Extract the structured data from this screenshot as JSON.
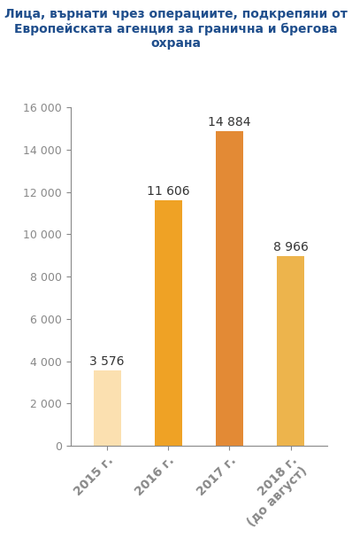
{
  "chart_data": {
    "type": "bar",
    "title": "Лица, върнати чрез операциите, подкрепяни от Европейската агенция за гранична и брегова охрана",
    "categories": [
      "2015 г.",
      "2016 г.",
      "2017 г.",
      "2018 г.\n(до август)"
    ],
    "values": [
      3576,
      11606,
      14884,
      8966
    ],
    "value_labels": [
      "3 576",
      "11 606",
      "14 884",
      "8 966"
    ],
    "colors": [
      "#FBE0B0",
      "#EFA225",
      "#E38A35",
      "#EDB44C"
    ],
    "ylim": [
      0,
      16000
    ],
    "yticks": [
      0,
      {
        "value": 2000,
        "label": "2 000"
      },
      {
        "value": 4000,
        "label": "4 000"
      },
      {
        "value": 6000,
        "label": "6 000"
      },
      {
        "value": 8000,
        "label": "8 000"
      },
      {
        "value": 10000,
        "label": "10 000"
      },
      {
        "value": 12000,
        "label": "12 000"
      },
      {
        "value": 14000,
        "label": "14 000"
      },
      {
        "value": 16000,
        "label": "16 000"
      }
    ],
    "grid": false,
    "data_labels": true
  }
}
